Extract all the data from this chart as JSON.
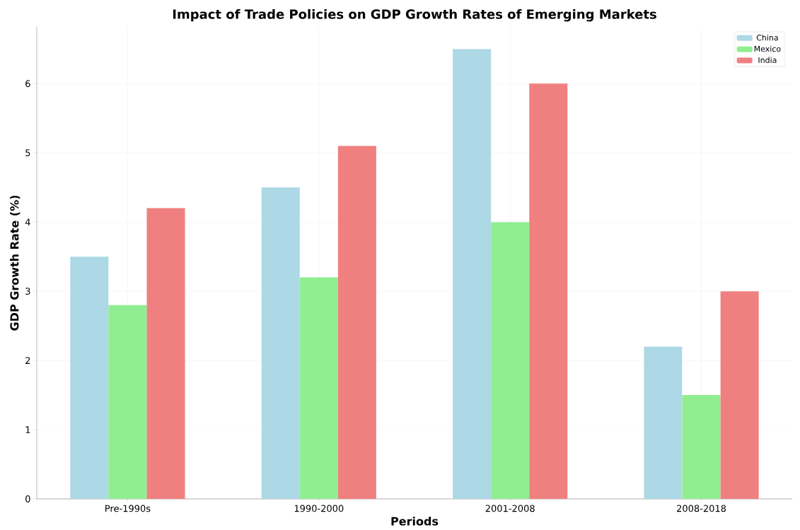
{
  "chart_data": {
    "type": "bar",
    "title": "Impact of Trade Policies on GDP Growth Rates of Emerging Markets",
    "xlabel": "Periods",
    "ylabel": "GDP Growth Rate (%)",
    "categories": [
      "Pre-1990s",
      "1990-2000",
      "2001-2008",
      "2008-2018"
    ],
    "series": [
      {
        "name": "China",
        "color": "#add8e6",
        "values": [
          3.5,
          4.5,
          6.5,
          2.2
        ]
      },
      {
        "name": "Mexico",
        "color": "#90ee90",
        "values": [
          2.8,
          3.2,
          4.0,
          1.5
        ]
      },
      {
        "name": "India",
        "color": "#f08080",
        "values": [
          4.2,
          5.1,
          6.0,
          3.0
        ]
      }
    ],
    "ylim": [
      0,
      6.82
    ],
    "yticks": [
      0,
      1,
      2,
      3,
      4,
      5,
      6
    ],
    "grid": true,
    "legend": "top right"
  }
}
